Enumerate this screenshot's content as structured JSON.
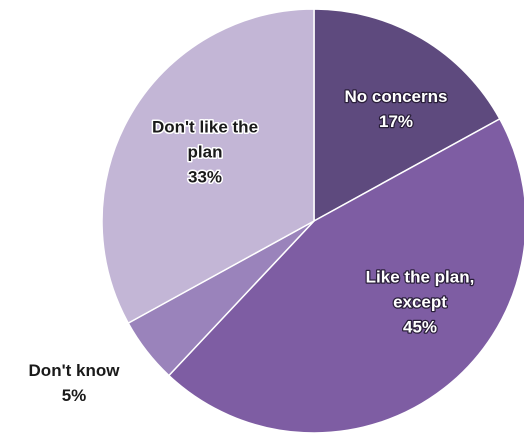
{
  "chart_data": {
    "type": "pie",
    "title": "",
    "start_angle_deg": 0,
    "direction": "clockwise",
    "legend": "none",
    "slices": [
      {
        "label": "No concerns",
        "value": 17,
        "percent_label": "17%",
        "color": "#5e4a7e",
        "label_lines": [
          "No concerns",
          "17%"
        ],
        "label_style": "inside"
      },
      {
        "label": "Like the plan, except",
        "value": 45,
        "percent_label": "45%",
        "color": "#7e5da3",
        "label_lines": [
          "Like the plan,",
          "except",
          "45%"
        ],
        "label_style": "inside"
      },
      {
        "label": "Don't know",
        "value": 5,
        "percent_label": "5%",
        "color": "#9a83bb",
        "label_lines": [
          "Don't know",
          "5%"
        ],
        "label_style": "outside"
      },
      {
        "label": "Don't like the plan",
        "value": 33,
        "percent_label": "33%",
        "color": "#c3b6d6",
        "label_lines": [
          "Don't like the",
          "plan",
          "33%"
        ],
        "label_style": "inside-dark"
      }
    ]
  }
}
